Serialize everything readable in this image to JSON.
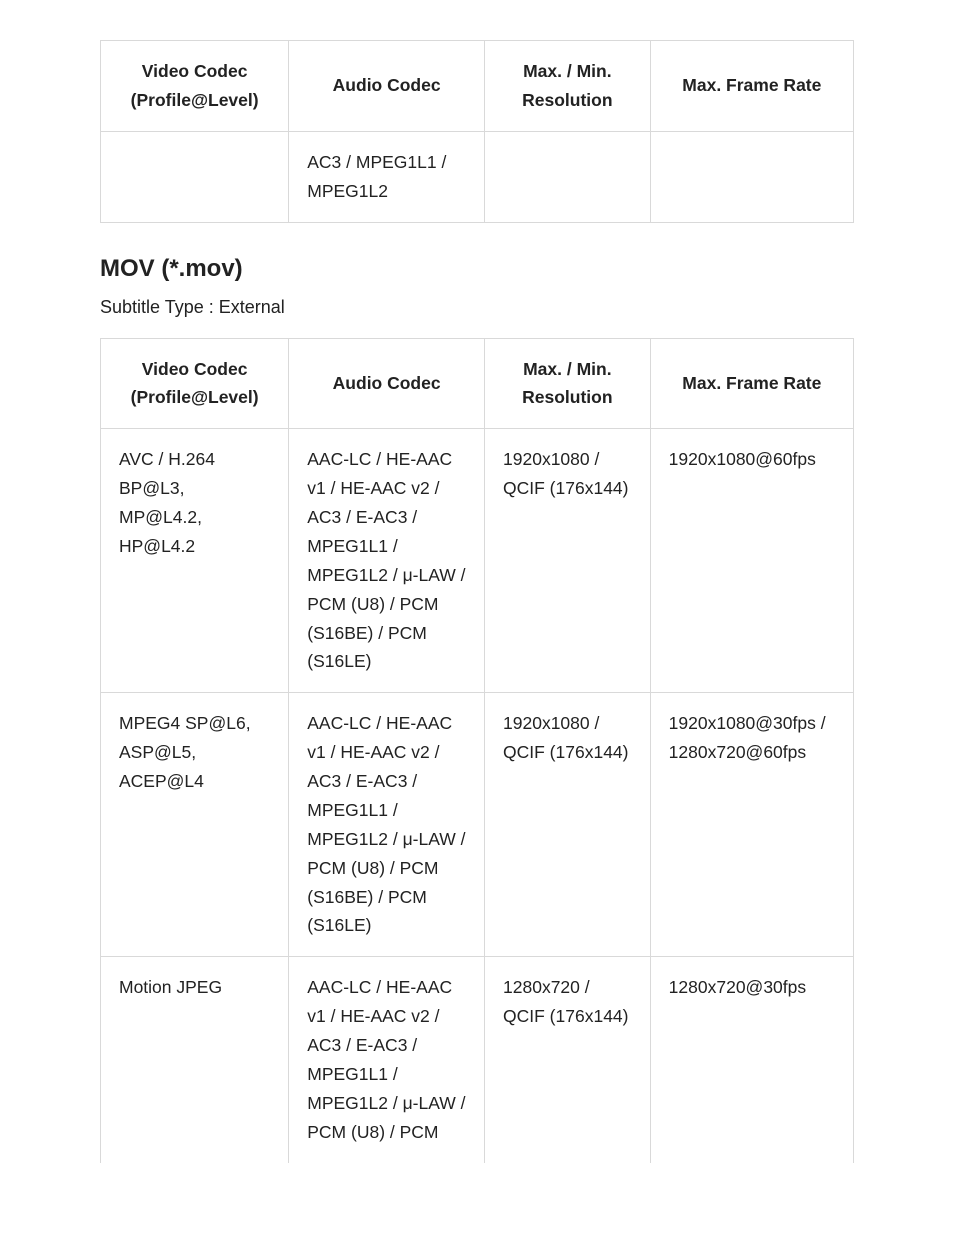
{
  "colors": {
    "border": "#d9d9d9",
    "text": "#222222",
    "background": "#ffffff"
  },
  "typography": {
    "body_fontsize_pt": 13,
    "heading_fontsize_pt": 18,
    "font_family": "Arial"
  },
  "table1": {
    "headers": [
      "Video Codec (Profile@Level)",
      "Audio Codec",
      "Max. / Min. Resolution",
      "Max. Frame Rate"
    ],
    "rows": [
      [
        "",
        "AC3 / MPEG1L1 / MPEG1L2",
        "",
        ""
      ]
    ]
  },
  "section": {
    "title": "MOV (*.mov)",
    "subtitle": "Subtitle Type : External"
  },
  "table2": {
    "headers": [
      "Video Codec (Profile@Level)",
      "Audio Codec",
      "Max. / Min. Resolution",
      "Max. Frame Rate"
    ],
    "rows": [
      [
        "AVC / H.264 BP@L3, MP@L4.2, HP@L4.2",
        "AAC-LC / HE-AAC v1 / HE-AAC v2 / AC3 / E-AC3 / MPEG1L1 / MPEG1L2 / μ-LAW / PCM (U8) / PCM (S16BE) / PCM (S16LE)",
        "1920x1080 / QCIF (176x144)",
        "1920x1080@60fps"
      ],
      [
        "MPEG4 SP@L6, ASP@L5, ACEP@L4",
        "AAC-LC / HE-AAC v1 / HE-AAC v2 / AC3 / E-AC3 / MPEG1L1 / MPEG1L2 / μ-LAW / PCM (U8) / PCM (S16BE) / PCM (S16LE)",
        "1920x1080 / QCIF (176x144)",
        "1920x1080@30fps / 1280x720@60fps"
      ],
      [
        "Motion JPEG",
        "AAC-LC / HE-AAC v1 / HE-AAC v2 / AC3 / E-AC3 / MPEG1L1 / MPEG1L2 / μ-LAW / PCM (U8) / PCM",
        "1280x720 / QCIF (176x144)",
        "1280x720@30fps"
      ]
    ]
  }
}
